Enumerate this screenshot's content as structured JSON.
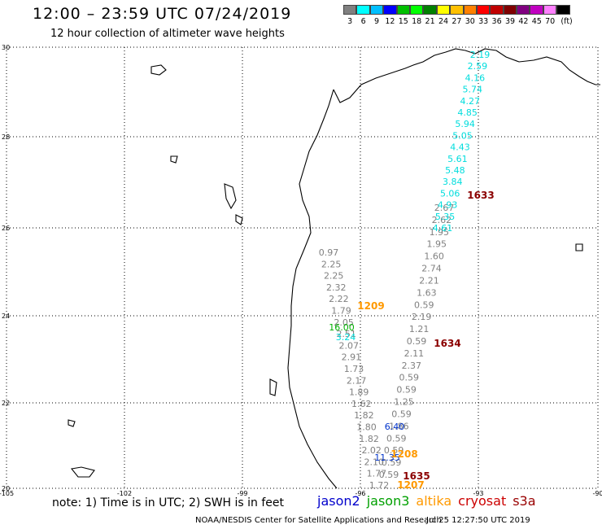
{
  "title": "12:00 – 23:59 UTC 07/24/2019",
  "subtitle": "12 hour collection of altimeter wave heights",
  "legend": {
    "colors": [
      "#808080",
      "#00ffff",
      "#00bfff",
      "#0000ff",
      "#00bf00",
      "#00ff00",
      "#008000",
      "#ffff00",
      "#ffc000",
      "#ff8000",
      "#ff0000",
      "#c00000",
      "#800000",
      "#800080",
      "#c000c0",
      "#ff80ff",
      "#000000"
    ],
    "labels": [
      "3",
      "6",
      "9",
      "12",
      "15",
      "18",
      "21",
      "24",
      "27",
      "30",
      "33",
      "36",
      "39",
      "42",
      "45",
      "70",
      "(ft)"
    ]
  },
  "axes": {
    "lat_labels": [
      "30",
      "28",
      "26",
      "24",
      "22",
      "20"
    ],
    "lon_labels": [
      "-105",
      "-102",
      "-99",
      "-96",
      "-93",
      "-90"
    ]
  },
  "tracks": {
    "gray_west": [
      "0.97",
      "2.25",
      "2.25",
      "2.32",
      "2.22",
      "1.79",
      "2.05",
      "2.51",
      "2.07",
      "2.91",
      "1.73",
      "2.17",
      "1.89",
      "1.62",
      "1.82",
      "1.80",
      "1.82",
      "2.02",
      "2.10",
      "1.77",
      "1.72"
    ],
    "gray_east": [
      "2.67",
      "2.62",
      "1.95",
      "1.95",
      "1.60",
      "2.74",
      "2.21",
      "1.63",
      "0.59",
      "2.19",
      "1.21",
      "0.59",
      "2.11",
      "2.37",
      "0.59",
      "0.59",
      "1.25",
      "0.59",
      "1.86",
      "0.59",
      "0.59",
      "0.59",
      "0.59"
    ],
    "cyan_north": [
      "2.19",
      "2.59",
      "4.16",
      "5.74",
      "4.27",
      "4.85",
      "5.94",
      "5.05",
      "4.43",
      "5.61",
      "5.48",
      "3.84",
      "5.06",
      "4.93",
      "5.35",
      "4.61"
    ],
    "cyan_west": [
      "3.24"
    ],
    "green": [
      "16.00"
    ],
    "blue": [
      "6.40",
      "11.35"
    ]
  },
  "time_labels": {
    "altika": [
      "1209",
      "1208",
      "1207"
    ],
    "cryosat": [
      "1633",
      "1634",
      "1635"
    ]
  },
  "footer": {
    "note": "note: 1) Time is in UTC; 2) SWH is in feet",
    "satellites": [
      {
        "name": "jason2",
        "color": "#0000cc"
      },
      {
        "name": "jason3",
        "color": "#00a000"
      },
      {
        "name": "altika",
        "color": "#ff9900"
      },
      {
        "name": "cryosat",
        "color": "#cc0000"
      },
      {
        "name": "s3a",
        "color": "#990000"
      }
    ],
    "credit": "NOAA/NESDIS Center for Satellite Applications and Research",
    "timestamp": "Jul 25 12:27:50 UTC 2019"
  }
}
